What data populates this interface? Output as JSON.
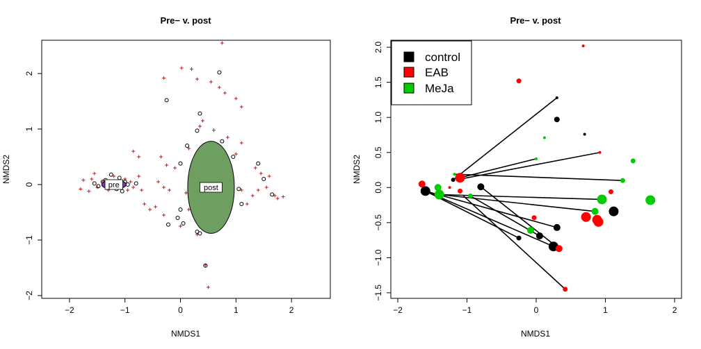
{
  "chart_data": [
    {
      "type": "scatter",
      "title": "Pre− v. post",
      "xlabel": "NMDS1",
      "ylabel": "NMDS2",
      "xlim": [
        -2.5,
        2.7
      ],
      "ylim": [
        -2.05,
        2.6
      ],
      "xticks": [
        -2,
        -1,
        0,
        1,
        2
      ],
      "yticks": [
        -2,
        -1,
        0,
        1,
        2
      ],
      "series": [
        {
          "marker": "plus",
          "color": "#ff0000",
          "points": [
            [
              0.75,
              2.55
            ],
            [
              -0.3,
              1.92
            ],
            [
              0.02,
              2.1
            ],
            [
              0.2,
              2.08
            ],
            [
              0.3,
              1.9
            ],
            [
              0.55,
              1.85
            ],
            [
              0.7,
              1.75
            ],
            [
              0.8,
              1.65
            ],
            [
              1.0,
              1.55
            ],
            [
              1.1,
              1.4
            ],
            [
              0.4,
              1.15
            ],
            [
              0.35,
              1.05
            ],
            [
              0.6,
              0.98
            ],
            [
              0.85,
              0.85
            ],
            [
              1.1,
              0.75
            ],
            [
              1.0,
              0.55
            ],
            [
              0.15,
              0.65
            ],
            [
              0.4,
              0.5
            ],
            [
              0.8,
              0.35
            ],
            [
              -0.35,
              0.5
            ],
            [
              -0.25,
              0.35
            ],
            [
              -0.1,
              0.3
            ],
            [
              0.2,
              0.25
            ],
            [
              0.55,
              0.2
            ],
            [
              0.85,
              0.15
            ],
            [
              1.35,
              0.3
            ],
            [
              1.45,
              0.2
            ],
            [
              1.6,
              0.15
            ],
            [
              -0.4,
              0.05
            ],
            [
              -0.3,
              -0.05
            ],
            [
              -0.2,
              -0.1
            ],
            [
              0.1,
              -0.15
            ],
            [
              0.5,
              -0.2
            ],
            [
              1.1,
              -0.1
            ],
            [
              1.3,
              -0.2
            ],
            [
              1.4,
              -0.1
            ],
            [
              1.55,
              -0.05
            ],
            [
              1.7,
              -0.2
            ],
            [
              1.75,
              -0.25
            ],
            [
              1.85,
              -0.22
            ],
            [
              -0.65,
              -0.35
            ],
            [
              -0.55,
              -0.45
            ],
            [
              -0.45,
              -0.4
            ],
            [
              -0.3,
              -0.55
            ],
            [
              0.15,
              -0.45
            ],
            [
              0.5,
              -0.35
            ],
            [
              0.9,
              -0.4
            ],
            [
              1.2,
              -0.35
            ],
            [
              0.0,
              -0.75
            ],
            [
              0.3,
              -0.9
            ],
            [
              0.45,
              -1.45
            ],
            [
              0.5,
              -1.85
            ],
            [
              -0.85,
              0.6
            ],
            [
              -0.75,
              0.5
            ],
            [
              -1.6,
              0.1
            ],
            [
              -1.55,
              0.2
            ],
            [
              -1.5,
              -0.05
            ],
            [
              -1.4,
              0.05
            ],
            [
              -1.3,
              -0.1
            ],
            [
              -1.2,
              0.15
            ],
            [
              -1.1,
              -0.05
            ],
            [
              -1.0,
              0.1
            ],
            [
              -0.95,
              -0.1
            ],
            [
              -0.9,
              0.05
            ],
            [
              -0.85,
              -0.05
            ],
            [
              -0.75,
              0.15
            ],
            [
              -0.7,
              -0.1
            ],
            [
              -1.75,
              0.08
            ],
            [
              -1.8,
              -0.08
            ],
            [
              -1.65,
              -0.12
            ]
          ]
        },
        {
          "marker": "circle",
          "color": "#000000",
          "points": [
            [
              -0.25,
              1.52
            ],
            [
              0.7,
              2.02
            ],
            [
              0.35,
              1.28
            ],
            [
              0.3,
              0.97
            ],
            [
              0.75,
              0.78
            ],
            [
              0.95,
              0.5
            ],
            [
              0.0,
              0.38
            ],
            [
              0.12,
              0.7
            ],
            [
              0.6,
              0.35
            ],
            [
              1.4,
              0.38
            ],
            [
              1.5,
              0.1
            ],
            [
              1.65,
              -0.18
            ],
            [
              1.05,
              -0.08
            ],
            [
              1.1,
              -0.35
            ],
            [
              0.85,
              -0.5
            ],
            [
              0.75,
              -0.42
            ],
            [
              0.55,
              -0.3
            ],
            [
              0.0,
              -0.45
            ],
            [
              -0.05,
              -0.6
            ],
            [
              0.05,
              -0.7
            ],
            [
              -0.22,
              -0.72
            ],
            [
              0.3,
              -0.85
            ],
            [
              0.35,
              -0.88
            ],
            [
              0.45,
              -1.46
            ],
            [
              -1.55,
              0.02
            ],
            [
              -1.48,
              -0.03
            ],
            [
              -1.4,
              0.05
            ],
            [
              -1.35,
              0.08
            ],
            [
              -1.25,
              0.18
            ],
            [
              -1.1,
              0.12
            ],
            [
              -1.0,
              0.05
            ],
            [
              -0.95,
              0.0
            ],
            [
              -0.8,
              0.02
            ],
            [
              -1.05,
              -0.12
            ],
            [
              -1.15,
              -0.08
            ]
          ]
        }
      ],
      "ellipses": [
        {
          "label": "pre",
          "center": [
            -1.2,
            0.0
          ],
          "rx": 0.22,
          "ry": 0.085,
          "fill": "#7a34c9"
        },
        {
          "label": "post",
          "center": [
            0.55,
            -0.05
          ],
          "rx": 0.42,
          "ry": 0.83,
          "fill": "#6e9f60"
        }
      ]
    },
    {
      "type": "scatter",
      "title": "Pre− v. post",
      "xlabel": "NMDS1",
      "ylabel": "NMDS2",
      "xlim": [
        -2.1,
        2.1
      ],
      "ylim": [
        -1.58,
        2.1
      ],
      "xticks": [
        -2,
        -1,
        0,
        1,
        2
      ],
      "yticks": [
        -1.5,
        -1.0,
        -0.5,
        0.0,
        0.5,
        1.0,
        1.5,
        2.0
      ],
      "legend": {
        "position": "top-left",
        "entries": [
          {
            "label": "control",
            "color": "#000000"
          },
          {
            "label": "EAB",
            "color": "#ff0000"
          },
          {
            "label": "MeJa",
            "color": "#00cd00"
          }
        ]
      },
      "segments": [
        [
          [
            -1.2,
            0.11
          ],
          [
            0.3,
            1.28
          ]
        ],
        [
          [
            -1.1,
            0.12
          ],
          [
            0.92,
            0.5
          ]
        ],
        [
          [
            -1.1,
            0.14
          ],
          [
            0.0,
            0.41
          ]
        ],
        [
          [
            -1.2,
            0.19
          ],
          [
            1.25,
            0.1
          ]
        ],
        [
          [
            -1.4,
            -0.1
          ],
          [
            0.95,
            -0.17
          ]
        ],
        [
          [
            -1.6,
            -0.05
          ],
          [
            0.3,
            -0.57
          ]
        ],
        [
          [
            -1.6,
            -0.05
          ],
          [
            -0.25,
            -0.72
          ]
        ],
        [
          [
            -1.6,
            -0.05
          ],
          [
            0.25,
            -0.84
          ]
        ],
        [
          [
            -0.8,
            0.01
          ],
          [
            0.33,
            -0.87
          ]
        ],
        [
          [
            -1.05,
            -0.12
          ],
          [
            0.42,
            -1.45
          ]
        ],
        [
          [
            -0.95,
            -0.12
          ],
          [
            0.05,
            -0.69
          ]
        ],
        [
          [
            -1.4,
            -0.1
          ],
          [
            0.85,
            -0.34
          ]
        ]
      ],
      "points": [
        {
          "x": -1.6,
          "y": -0.05,
          "group": "control",
          "size": 7
        },
        {
          "x": -0.8,
          "y": 0.01,
          "group": "control",
          "size": 5
        },
        {
          "x": -1.2,
          "y": 0.11,
          "group": "control",
          "size": 3
        },
        {
          "x": 0.3,
          "y": 1.28,
          "group": "control",
          "size": 2
        },
        {
          "x": 0.3,
          "y": 0.97,
          "group": "control",
          "size": 4
        },
        {
          "x": 0.7,
          "y": 0.76,
          "group": "control",
          "size": 2
        },
        {
          "x": 0.3,
          "y": -0.57,
          "group": "control",
          "size": 5
        },
        {
          "x": 0.05,
          "y": -0.69,
          "group": "control",
          "size": 5
        },
        {
          "x": -0.25,
          "y": -0.72,
          "group": "control",
          "size": 3.5
        },
        {
          "x": 0.25,
          "y": -0.84,
          "group": "control",
          "size": 7
        },
        {
          "x": 1.12,
          "y": -0.34,
          "group": "control",
          "size": 7
        },
        {
          "x": -1.65,
          "y": 0.05,
          "group": "EAB",
          "size": 5
        },
        {
          "x": -1.1,
          "y": 0.14,
          "group": "EAB",
          "size": 7
        },
        {
          "x": -1.1,
          "y": -0.05,
          "group": "EAB",
          "size": 3.5
        },
        {
          "x": -1.25,
          "y": 0.0,
          "group": "EAB",
          "size": 2
        },
        {
          "x": -0.25,
          "y": 1.52,
          "group": "EAB",
          "size": 3.5
        },
        {
          "x": 0.68,
          "y": 2.02,
          "group": "EAB",
          "size": 2
        },
        {
          "x": 0.92,
          "y": 0.5,
          "group": "EAB",
          "size": 2
        },
        {
          "x": 1.08,
          "y": -0.06,
          "group": "EAB",
          "size": 3.5
        },
        {
          "x": 0.72,
          "y": -0.42,
          "group": "EAB",
          "size": 7
        },
        {
          "x": 0.88,
          "y": -0.46,
          "group": "EAB",
          "size": 7
        },
        {
          "x": 0.9,
          "y": -0.49,
          "group": "EAB",
          "size": 7
        },
        {
          "x": 0.33,
          "y": -0.87,
          "group": "EAB",
          "size": 5
        },
        {
          "x": 0.42,
          "y": -1.45,
          "group": "EAB",
          "size": 3.5
        },
        {
          "x": -0.03,
          "y": -0.43,
          "group": "EAB",
          "size": 3.5
        },
        {
          "x": -1.4,
          "y": -0.1,
          "group": "MeJa",
          "size": 7
        },
        {
          "x": -1.42,
          "y": 0.0,
          "group": "MeJa",
          "size": 5
        },
        {
          "x": -0.95,
          "y": -0.12,
          "group": "MeJa",
          "size": 3.5
        },
        {
          "x": -1.18,
          "y": 0.19,
          "group": "MeJa",
          "size": 2
        },
        {
          "x": 0.0,
          "y": 0.41,
          "group": "MeJa",
          "size": 2
        },
        {
          "x": 0.12,
          "y": 0.71,
          "group": "MeJa",
          "size": 2
        },
        {
          "x": 1.4,
          "y": 0.38,
          "group": "MeJa",
          "size": 3.5
        },
        {
          "x": 1.25,
          "y": 0.1,
          "group": "MeJa",
          "size": 3.5
        },
        {
          "x": 0.95,
          "y": -0.17,
          "group": "MeJa",
          "size": 7
        },
        {
          "x": 0.85,
          "y": -0.34,
          "group": "MeJa",
          "size": 5
        },
        {
          "x": 1.65,
          "y": -0.18,
          "group": "MeJa",
          "size": 7
        },
        {
          "x": -0.08,
          "y": -0.61,
          "group": "MeJa",
          "size": 5
        }
      ]
    }
  ]
}
